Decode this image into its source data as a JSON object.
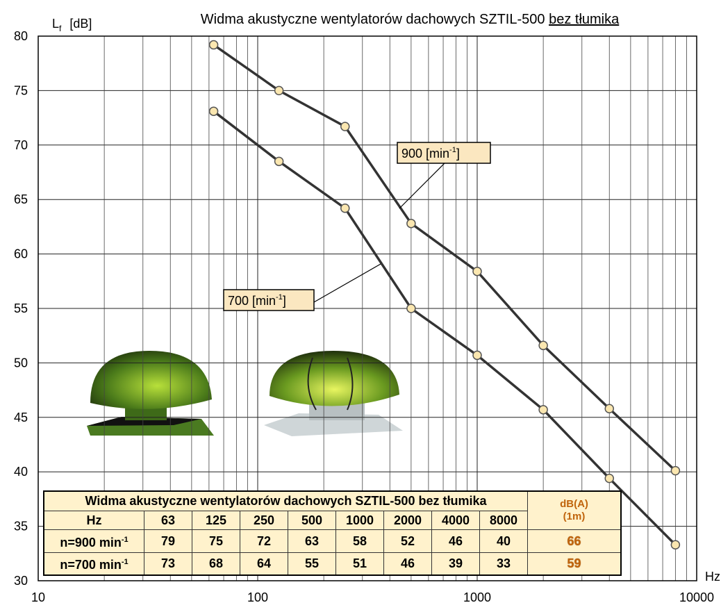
{
  "chart_data": {
    "type": "line",
    "title": "Widma akustyczne wentylatorów dachowych SZTIL-500 ",
    "title_underlined": "bez tłumika",
    "y_label": {
      "symbol": "L",
      "subscript": "f",
      "unit": "[dB]"
    },
    "x_label": "Hz",
    "x": [
      63,
      125,
      250,
      500,
      1000,
      2000,
      4000,
      8000
    ],
    "series": [
      {
        "color": "#333333",
        "values": [
          79.2,
          75,
          71.7,
          62.8,
          58.4,
          51.6,
          45.8,
          40.1
        ]
      },
      {
        "color": "#333333",
        "values": [
          73.1,
          68.5,
          64.2,
          55,
          50.7,
          45.7,
          39.4,
          33.3
        ]
      }
    ],
    "marker_fill": "#fbe7b0",
    "xlim": [
      10,
      10000
    ],
    "xticks": [
      10,
      100,
      1000,
      10000
    ],
    "xlog": true,
    "minor_grid": true,
    "ylim": [
      30,
      80
    ],
    "yticks": [
      30,
      35,
      40,
      45,
      50,
      55,
      60,
      65,
      70,
      75,
      80
    ],
    "grid": true,
    "annotations": [
      {
        "series": 0,
        "text": "900  [min",
        "sup": "-1",
        "end": "]"
      },
      {
        "series": 1,
        "text": "700  [min",
        "sup": "-1",
        "end": "]"
      }
    ]
  },
  "table": {
    "title": "Widma akustyczne wentylatorów dachowych SZTIL-500 bez tłumika",
    "level_header": "dB(A)",
    "level_note": "(1m)",
    "freq_label": "Hz",
    "freqs": [
      63,
      125,
      250,
      500,
      1000,
      2000,
      4000,
      8000
    ],
    "rows": [
      {
        "label": "n=900 min",
        "sup": "-1",
        "values": [
          79,
          75,
          72,
          63,
          58,
          52,
          46,
          40
        ],
        "level": 66
      },
      {
        "label": "n=700 min",
        "sup": "-1",
        "values": [
          73,
          68,
          64,
          55,
          51,
          46,
          39,
          33
        ],
        "level": 59
      }
    ]
  }
}
